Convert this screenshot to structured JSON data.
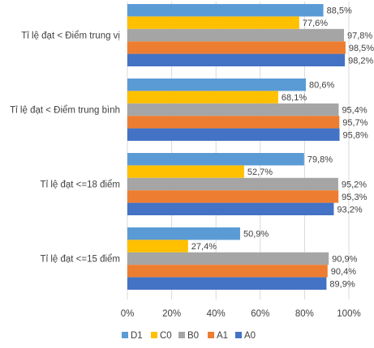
{
  "chart_data": {
    "type": "bar",
    "orientation": "horizontal",
    "title": "",
    "xlabel": "",
    "ylabel": "",
    "xlim": [
      0,
      100
    ],
    "grid": true,
    "legend_position": "bottom",
    "tick_labels": [
      "0%",
      "20%",
      "40%",
      "60%",
      "80%",
      "100%"
    ],
    "tick_values": [
      0,
      20,
      40,
      60,
      80,
      100
    ],
    "categories": [
      "Tỉ lệ đạt < Điểm trung vị",
      "Tỉ lệ đạt < Điểm trung bình",
      "Tỉ lệ đạt <=18 điểm",
      "Tỉ lệ đạt <=15 điểm"
    ],
    "series": [
      {
        "name": "D1",
        "color": "#5B9BD5",
        "values": [
          88.5,
          80.6,
          79.8,
          50.9
        ],
        "labels": [
          "88,5%",
          "80,6%",
          "79,8%",
          "50,9%"
        ]
      },
      {
        "name": "C0",
        "color": "#FFC000",
        "values": [
          77.6,
          68.1,
          52.7,
          27.4
        ],
        "labels": [
          "77,6%",
          "68,1%",
          "52,7%",
          "27,4%"
        ]
      },
      {
        "name": "B0",
        "color": "#A5A5A5",
        "values": [
          97.8,
          95.4,
          95.2,
          90.9
        ],
        "labels": [
          "97,8%",
          "95,4%",
          "95,2%",
          "90,9%"
        ]
      },
      {
        "name": "A1",
        "color": "#ED7D31",
        "values": [
          98.5,
          95.7,
          95.3,
          90.4
        ],
        "labels": [
          "98,5%",
          "95,7%",
          "95,3%",
          "90,4%"
        ]
      },
      {
        "name": "A0",
        "color": "#4472C4",
        "values": [
          98.2,
          95.8,
          93.2,
          89.9
        ],
        "labels": [
          "98,2%",
          "95,8%",
          "93,2%",
          "89,9%"
        ]
      }
    ]
  }
}
